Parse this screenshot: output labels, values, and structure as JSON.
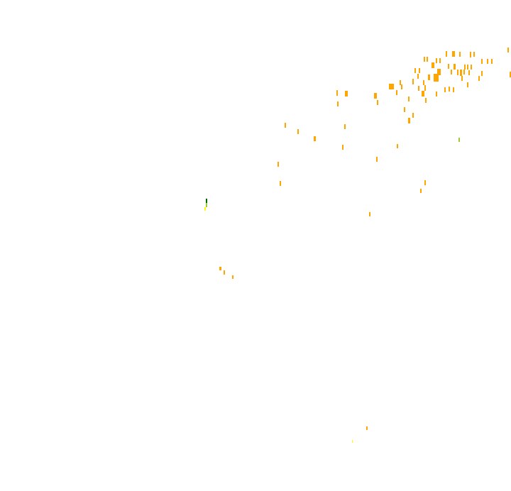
{
  "map": {
    "background": "#ffffff",
    "colors": {
      "high": "#ffa500",
      "medium": "#9acd32",
      "dense": "#006400",
      "low": "#ffff00"
    }
  }
}
